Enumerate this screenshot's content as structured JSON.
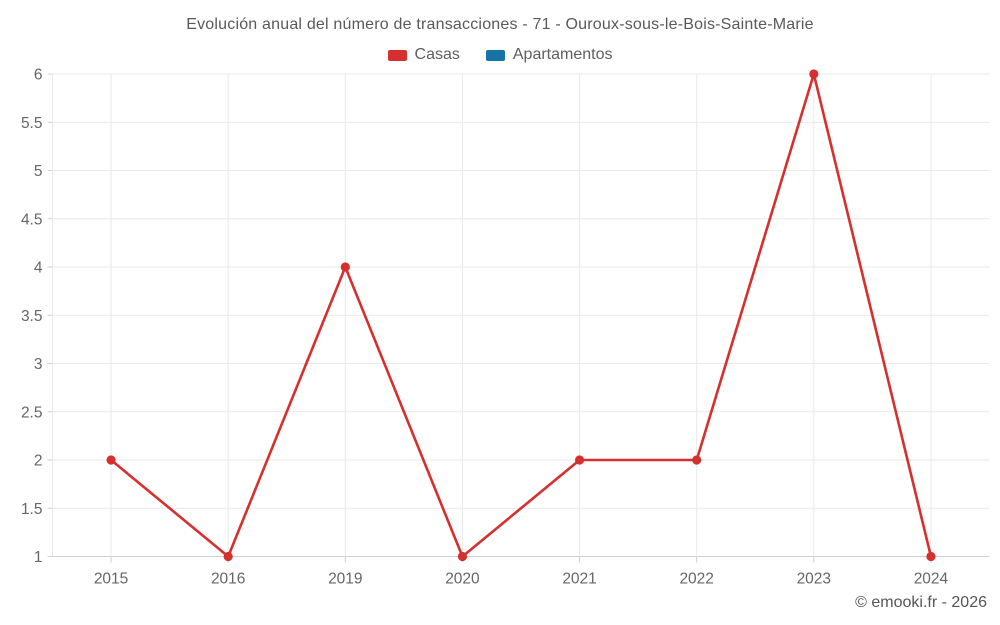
{
  "chart_data": {
    "type": "line",
    "title": "Evolución anual del número de transacciones - 71 - Ouroux-sous-le-Bois-Sainte-Marie",
    "categories": [
      "2015",
      "2016",
      "2019",
      "2020",
      "2021",
      "2022",
      "2023",
      "2024"
    ],
    "series": [
      {
        "name": "Casas",
        "color": "#d6302e",
        "values": [
          2,
          1,
          4,
          1,
          2,
          2,
          6,
          1
        ]
      },
      {
        "name": "Apartamentos",
        "color": "#1673a5",
        "values": [
          null,
          null,
          null,
          null,
          null,
          null,
          null,
          null
        ]
      }
    ],
    "xlabel": "",
    "ylabel": "",
    "ylim": [
      1,
      6
    ],
    "ytick_step": 0.5,
    "ytick_labels": [
      "1",
      "1.5",
      "2",
      "2.5",
      "3",
      "3.5",
      "4",
      "4.5",
      "5",
      "5.5",
      "6"
    ],
    "grid": true,
    "legend_position": "top"
  },
  "footer": {
    "text": "© emooki.fr - 2026"
  },
  "colors": {
    "background": "#ffffff",
    "grid": "#e9e9e9",
    "axis": "#cfcfcf",
    "tick_text": "#666666",
    "title_text": "#595959",
    "footer_text": "#555555"
  }
}
